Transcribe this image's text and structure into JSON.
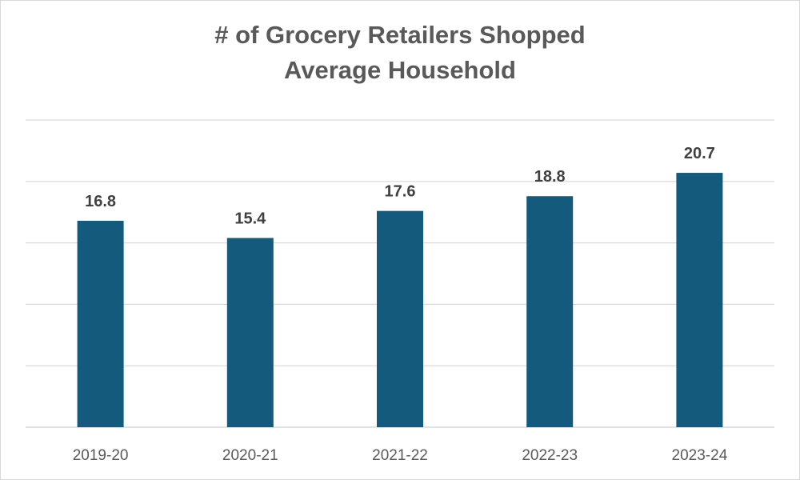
{
  "chart_data": {
    "type": "bar",
    "title": "# of Grocery Retailers Shopped",
    "subtitle": "Average Household",
    "categories": [
      "2019-20",
      "2020-21",
      "2021-22",
      "2022-23",
      "2023-24"
    ],
    "values": [
      16.8,
      15.4,
      17.6,
      18.8,
      20.7
    ],
    "data_labels": [
      "16.8",
      "15.4",
      "17.6",
      "18.8",
      "20.7"
    ],
    "xlabel": "",
    "ylabel": "",
    "ylim": [
      0,
      25
    ],
    "gridlines": [
      5,
      10,
      15,
      20,
      25
    ],
    "grid": true,
    "legend": "none",
    "bar_color": "#145a7c"
  }
}
